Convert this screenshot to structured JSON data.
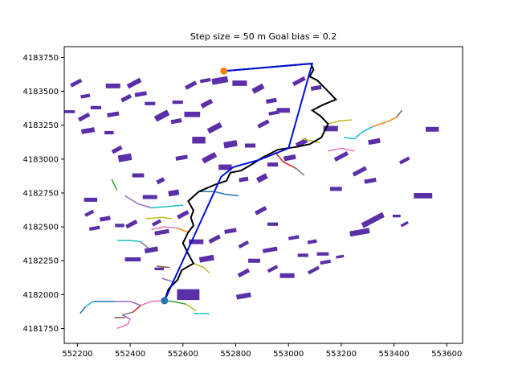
{
  "chart_data": {
    "type": "scatter",
    "title": "Step size = 50 m     Goal bias = 0.2",
    "xlim": [
      552150,
      553660
    ],
    "ylim": [
      4181640,
      4183830
    ],
    "x_ticks": [
      552200,
      552400,
      552600,
      552800,
      553000,
      553200,
      553400,
      553600
    ],
    "y_ticks": [
      4181750,
      4182000,
      4182250,
      4182500,
      4182750,
      4183000,
      4183250,
      4183500,
      4183750
    ],
    "grid": false,
    "colors": {
      "buildings": "#5a2fa8",
      "rrt_path": "#000000",
      "final_path": "#0010dd",
      "start": "#1f77b4",
      "goal": "#ff7f0e"
    },
    "start": [
      552530,
      4181955
    ],
    "goal": [
      552755,
      4183650
    ],
    "final_path": [
      [
        552530,
        4181955
      ],
      [
        552745,
        4182870
      ],
      [
        552790,
        4182940
      ],
      [
        552890,
        4182995
      ],
      [
        553000,
        4183080
      ],
      [
        553090,
        4183705
      ],
      [
        552755,
        4183650
      ]
    ],
    "rrt_path": [
      [
        552530,
        4181955
      ],
      [
        552545,
        4182040
      ],
      [
        552580,
        4182110
      ],
      [
        552595,
        4182180
      ],
      [
        552640,
        4182230
      ],
      [
        552620,
        4182300
      ],
      [
        552600,
        4182380
      ],
      [
        552620,
        4182460
      ],
      [
        552640,
        4182510
      ],
      [
        552630,
        4182570
      ],
      [
        552640,
        4182620
      ],
      [
        552620,
        4182690
      ],
      [
        552660,
        4182760
      ],
      [
        552720,
        4182810
      ],
      [
        552765,
        4182840
      ],
      [
        552780,
        4182900
      ],
      [
        552820,
        4182915
      ],
      [
        552860,
        4182960
      ],
      [
        552900,
        4183010
      ],
      [
        552960,
        4183070
      ],
      [
        553030,
        4183090
      ],
      [
        553080,
        4183110
      ],
      [
        553125,
        4183160
      ],
      [
        553150,
        4183260
      ],
      [
        553120,
        4183320
      ],
      [
        553090,
        4183360
      ],
      [
        553130,
        4183400
      ],
      [
        553180,
        4183440
      ],
      [
        553140,
        4183520
      ],
      [
        553110,
        4183580
      ],
      [
        553080,
        4183610
      ],
      [
        553095,
        4183660
      ],
      [
        553085,
        4183705
      ],
      [
        552755,
        4183650
      ]
    ],
    "buildings": [
      [
        552195,
        4183562,
        45,
        28
      ],
      [
        552230,
        4183465,
        35,
        25
      ],
      [
        552170,
        4183350,
        40,
        22
      ],
      [
        552225,
        4183310,
        45,
        30
      ],
      [
        552240,
        4183210,
        50,
        35
      ],
      [
        552320,
        4183195,
        35,
        25
      ],
      [
        552350,
        4183070,
        40,
        30
      ],
      [
        552380,
        4183010,
        50,
        50
      ],
      [
        552430,
        4182880,
        45,
        30
      ],
      [
        552515,
        4182840,
        30,
        30
      ],
      [
        552565,
        4182750,
        40,
        40
      ],
      [
        552475,
        4182720,
        55,
        30
      ],
      [
        552415,
        4183560,
        55,
        35
      ],
      [
        552440,
        4183480,
        45,
        30
      ],
      [
        552475,
        4183410,
        40,
        25
      ],
      [
        552520,
        4183320,
        55,
        45
      ],
      [
        552575,
        4183280,
        40,
        30
      ],
      [
        552635,
        4183330,
        60,
        40
      ],
      [
        552690,
        4183410,
        45,
        35
      ],
      [
        552740,
        4183580,
        60,
        45
      ],
      [
        552815,
        4183560,
        55,
        40
      ],
      [
        552885,
        4183520,
        45,
        40
      ],
      [
        552935,
        4183430,
        40,
        30
      ],
      [
        552980,
        4183360,
        50,
        35
      ],
      [
        553040,
        4183575,
        50,
        30
      ],
      [
        553105,
        4183525,
        40,
        30
      ],
      [
        553160,
        4183225,
        55,
        40
      ],
      [
        553050,
        4183120,
        45,
        35
      ],
      [
        553005,
        4183010,
        45,
        35
      ],
      [
        552940,
        4182960,
        40,
        30
      ],
      [
        552900,
        4182860,
        40,
        40
      ],
      [
        552830,
        4182850,
        35,
        30
      ],
      [
        552760,
        4182940,
        50,
        40
      ],
      [
        552700,
        4183010,
        55,
        40
      ],
      [
        552595,
        4183010,
        45,
        30
      ],
      [
        552660,
        4183140,
        50,
        50
      ],
      [
        552720,
        4183230,
        55,
        40
      ],
      [
        552780,
        4183110,
        50,
        45
      ],
      [
        552855,
        4183100,
        40,
        30
      ],
      [
        552905,
        4183260,
        45,
        30
      ],
      [
        552945,
        4183340,
        40,
        25
      ],
      [
        552580,
        4183420,
        40,
        25
      ],
      [
        552630,
        4183545,
        45,
        30
      ],
      [
        552685,
        4183580,
        40,
        25
      ],
      [
        552335,
        4183540,
        55,
        35
      ],
      [
        552385,
        4183450,
        40,
        30
      ],
      [
        552335,
        4183330,
        45,
        30
      ],
      [
        552270,
        4183380,
        40,
        25
      ],
      [
        553320,
        4182550,
        90,
        40
      ],
      [
        553270,
        4182460,
        75,
        40
      ],
      [
        553180,
        4182780,
        45,
        30
      ],
      [
        553270,
        4182910,
        55,
        30
      ],
      [
        553310,
        4182840,
        45,
        30
      ],
      [
        553510,
        4182730,
        70,
        40
      ],
      [
        553440,
        4182990,
        40,
        25
      ],
      [
        553325,
        4183130,
        45,
        35
      ],
      [
        553545,
        4183220,
        50,
        35
      ],
      [
        553200,
        4183020,
        55,
        30
      ],
      [
        553020,
        4182420,
        40,
        25
      ],
      [
        552940,
        4182520,
        40,
        25
      ],
      [
        552895,
        4182620,
        45,
        30
      ],
      [
        552930,
        4182330,
        55,
        30
      ],
      [
        552870,
        4182250,
        45,
        30
      ],
      [
        552830,
        4182160,
        45,
        30
      ],
      [
        552690,
        4182265,
        55,
        40
      ],
      [
        552650,
        4182390,
        55,
        35
      ],
      [
        552600,
        4182590,
        45,
        30
      ],
      [
        552520,
        4182460,
        55,
        30
      ],
      [
        552410,
        4182260,
        60,
        30
      ],
      [
        552720,
        4182410,
        45,
        30
      ],
      [
        552780,
        4182470,
        45,
        30
      ],
      [
        552620,
        4182000,
        85,
        80
      ],
      [
        552405,
        4182520,
        45,
        30
      ],
      [
        552305,
        4182560,
        40,
        30
      ],
      [
        552250,
        4182700,
        50,
        30
      ],
      [
        552245,
        4182600,
        35,
        25
      ],
      [
        552265,
        4182490,
        40,
        25
      ],
      [
        552360,
        4182510,
        35,
        25
      ],
      [
        552500,
        4182530,
        35,
        25
      ],
      [
        552480,
        4182330,
        50,
        35
      ],
      [
        553055,
        4182290,
        40,
        25
      ],
      [
        553095,
        4182180,
        45,
        25
      ],
      [
        553140,
        4182240,
        40,
        25
      ],
      [
        552995,
        4182140,
        55,
        35
      ],
      [
        552940,
        4182190,
        40,
        25
      ],
      [
        552830,
        4181990,
        55,
        35
      ],
      [
        553410,
        4182580,
        30,
        20
      ],
      [
        553440,
        4182520,
        30,
        20
      ],
      [
        553195,
        4182280,
        30,
        20
      ],
      [
        552510,
        4182190,
        35,
        20
      ],
      [
        552830,
        4182370,
        40,
        25
      ],
      [
        553090,
        4182390,
        35,
        25
      ],
      [
        553130,
        4182300,
        45,
        25
      ]
    ],
    "branches": [
      {
        "color": "#17becf",
        "points": [
          [
            553210,
            4183160
          ],
          [
            553250,
            4183150
          ],
          [
            553280,
            4183200
          ],
          [
            553320,
            4183240
          ]
        ]
      },
      {
        "color": "#ff7f0e",
        "points": [
          [
            553320,
            4183240
          ],
          [
            553380,
            4183280
          ],
          [
            553410,
            4183310
          ]
        ]
      },
      {
        "color": "#8c564b",
        "points": [
          [
            553410,
            4183310
          ],
          [
            553430,
            4183360
          ]
        ]
      },
      {
        "color": "#bcbd22",
        "points": [
          [
            553150,
            4183260
          ],
          [
            553190,
            4183280
          ],
          [
            553240,
            4183290
          ]
        ]
      },
      {
        "color": "#e377c2",
        "points": [
          [
            553150,
            4183060
          ],
          [
            553200,
            4183080
          ],
          [
            553250,
            4183060
          ]
        ]
      },
      {
        "color": "#d62728",
        "points": [
          [
            552950,
            4183050
          ],
          [
            552980,
            4182980
          ],
          [
            553030,
            4182930
          ]
        ]
      },
      {
        "color": "#7f7f7f",
        "points": [
          [
            553030,
            4182930
          ],
          [
            553060,
            4182880
          ]
        ]
      },
      {
        "color": "#bcbd22",
        "points": [
          [
            553050,
            4183150
          ],
          [
            553120,
            4183120
          ]
        ]
      },
      {
        "color": "#1f77b4",
        "points": [
          [
            552660,
            4182760
          ],
          [
            552720,
            4182760
          ],
          [
            552760,
            4182740
          ],
          [
            552810,
            4182730
          ]
        ]
      },
      {
        "color": "#17becf",
        "points": [
          [
            552480,
            4182640
          ],
          [
            552540,
            4182650
          ],
          [
            552600,
            4182660
          ]
        ]
      },
      {
        "color": "#9467bd",
        "points": [
          [
            552380,
            4182730
          ],
          [
            552430,
            4182670
          ],
          [
            552480,
            4182640
          ]
        ]
      },
      {
        "color": "#2ca02c",
        "points": [
          [
            552330,
            4182850
          ],
          [
            552350,
            4182770
          ]
        ]
      },
      {
        "color": "#bcbd22",
        "points": [
          [
            552460,
            4182560
          ],
          [
            552520,
            4182570
          ],
          [
            552560,
            4182560
          ]
        ]
      },
      {
        "color": "#e377c2",
        "points": [
          [
            552480,
            4182480
          ],
          [
            552530,
            4182500
          ],
          [
            552580,
            4182490
          ]
        ]
      },
      {
        "color": "#ff7f0e",
        "points": [
          [
            552580,
            4182490
          ],
          [
            552620,
            4182460
          ]
        ]
      },
      {
        "color": "#17becf",
        "points": [
          [
            552350,
            4182400
          ],
          [
            552400,
            4182400
          ],
          [
            552440,
            4182390
          ]
        ]
      },
      {
        "color": "#7f7f7f",
        "points": [
          [
            552440,
            4182390
          ],
          [
            552470,
            4182340
          ]
        ]
      },
      {
        "color": "#bcbd22",
        "points": [
          [
            552640,
            4182230
          ],
          [
            552680,
            4182200
          ],
          [
            552700,
            4182160
          ]
        ]
      },
      {
        "color": "#8c564b",
        "points": [
          [
            552500,
            4182210
          ],
          [
            552550,
            4182200
          ]
        ]
      },
      {
        "color": "#9467bd",
        "points": [
          [
            552520,
            4182120
          ],
          [
            552570,
            4182090
          ]
        ]
      },
      {
        "color": "#2ca02c",
        "points": [
          [
            552530,
            4181955
          ],
          [
            552560,
            4181950
          ],
          [
            552610,
            4181930
          ]
        ]
      },
      {
        "color": "#bcbd22",
        "points": [
          [
            552610,
            4181930
          ],
          [
            552650,
            4181880
          ]
        ]
      },
      {
        "color": "#17becf",
        "points": [
          [
            552640,
            4181860
          ],
          [
            552700,
            4181860
          ]
        ]
      },
      {
        "color": "#e377c2",
        "points": [
          [
            552530,
            4181955
          ],
          [
            552480,
            4181950
          ],
          [
            552440,
            4181920
          ]
        ]
      },
      {
        "color": "#d62728",
        "points": [
          [
            552440,
            4181920
          ],
          [
            552410,
            4181870
          ]
        ]
      },
      {
        "color": "#7f7f7f",
        "points": [
          [
            552410,
            4181870
          ],
          [
            552370,
            4181850
          ]
        ]
      },
      {
        "color": "#9467bd",
        "points": [
          [
            552370,
            4181850
          ],
          [
            552400,
            4181820
          ]
        ]
      },
      {
        "color": "#e377c2",
        "points": [
          [
            552400,
            4181820
          ],
          [
            552390,
            4181780
          ],
          [
            552350,
            4181750
          ]
        ]
      },
      {
        "color": "#8c564b",
        "points": [
          [
            552380,
            4181830
          ],
          [
            552340,
            4181830
          ]
        ]
      },
      {
        "color": "#1f77b4",
        "points": [
          [
            552340,
            4181950
          ],
          [
            552300,
            4181950
          ],
          [
            552260,
            4181950
          ]
        ]
      },
      {
        "color": "#17becf",
        "points": [
          [
            552260,
            4181950
          ],
          [
            552230,
            4181910
          ]
        ]
      },
      {
        "color": "#1f77b4",
        "points": [
          [
            552230,
            4181910
          ],
          [
            552210,
            4181860
          ]
        ]
      },
      {
        "color": "#9467bd",
        "points": [
          [
            552440,
            4181920
          ],
          [
            552400,
            4181950
          ],
          [
            552340,
            4181950
          ]
        ]
      }
    ]
  }
}
